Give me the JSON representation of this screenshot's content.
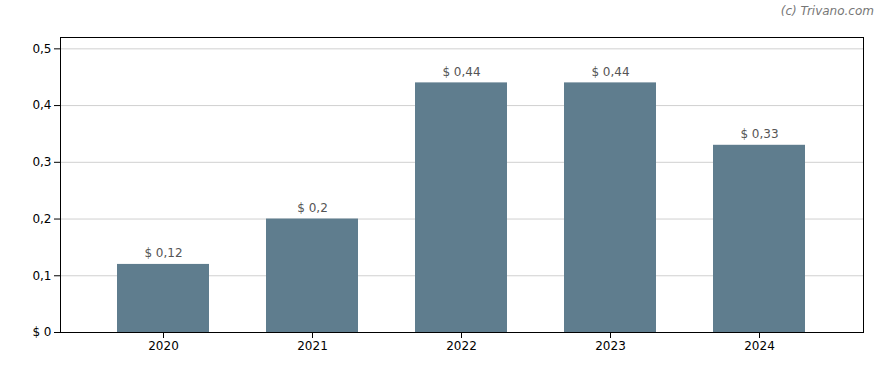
{
  "chart_data": {
    "type": "bar",
    "categories": [
      "2020",
      "2021",
      "2022",
      "2023",
      "2024"
    ],
    "values": [
      0.12,
      0.2,
      0.44,
      0.44,
      0.33
    ],
    "value_labels": [
      "$ 0,12",
      "$ 0,2",
      "$ 0,44",
      "$ 0,44",
      "$ 0,33"
    ],
    "data_labels": true,
    "color": "#5f7d8e",
    "ylim": [
      0,
      0.52
    ],
    "yticks": [
      {
        "value": 0.0,
        "label": "$ 0"
      },
      {
        "value": 0.1,
        "label": "0,1"
      },
      {
        "value": 0.2,
        "label": "0,2"
      },
      {
        "value": 0.3,
        "label": "0,3"
      },
      {
        "value": 0.4,
        "label": "0,4"
      },
      {
        "value": 0.5,
        "label": "0,5"
      }
    ],
    "grid": true,
    "annotations": [
      "(c) Trivano.com"
    ]
  }
}
